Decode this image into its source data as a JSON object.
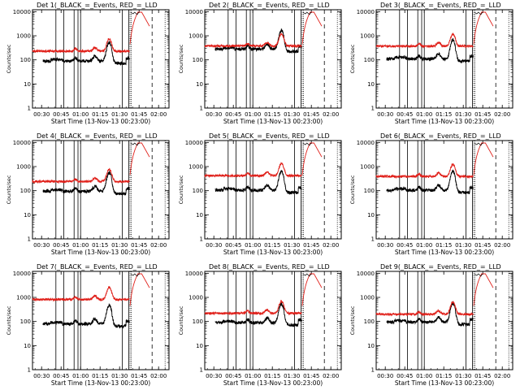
{
  "chart_data": {
    "type": "line",
    "time_start_label": "Start Time (13-Nov-13 00:23:00)",
    "xlabel": "Start Time (13-Nov-13 00:23:00)",
    "ylabel": "Counts/sec",
    "x_tick_labels": [
      "00:30",
      "00:45",
      "01:00",
      "01:15",
      "01:30",
      "01:45",
      "02:00"
    ],
    "y_tick_labels": [
      "1",
      "10",
      "100",
      "1000",
      "10000"
    ],
    "ylim": [
      1,
      12000
    ],
    "y_scale": "log",
    "legend": "in title",
    "series_colors": {
      "events": "#000000",
      "lld": "#e0201a"
    },
    "event_markers": [
      "00:41",
      "00:47",
      "00:55",
      "00:58",
      "01:00",
      "01:32",
      "01:37"
    ],
    "dashed_marker": "01:55",
    "panels": [
      {
        "title": "Det 1(_BLACK_=_Events, RED_=_LLD",
        "events_base": 90,
        "lld_base": 230
      },
      {
        "title": "Det 2(_BLACK_=_Events, RED_=_LLD",
        "events_base": 280,
        "lld_base": 380
      },
      {
        "title": "Det 3(_BLACK_=_Events, RED_=_LLD",
        "events_base": 110,
        "lld_base": 370
      },
      {
        "title": "Det 4(_BLACK_=_Events, RED_=_LLD",
        "events_base": 95,
        "lld_base": 240
      },
      {
        "title": "Det 5(_BLACK_=_Events, RED_=_LLD",
        "events_base": 105,
        "lld_base": 420
      },
      {
        "title": "Det 6(_BLACK_=_Events, RED_=_LLD",
        "events_base": 105,
        "lld_base": 390
      },
      {
        "title": "Det 7(_BLACK_=_Events, RED_=_LLD",
        "events_base": 80,
        "lld_base": 820
      },
      {
        "title": "Det 8(_BLACK_=_Events, RED_=_LLD",
        "events_base": 90,
        "lld_base": 220
      },
      {
        "title": "Det 9(_BLACK_=_Events, RED_=_LLD",
        "events_base": 95,
        "lld_base": 200
      }
    ]
  }
}
